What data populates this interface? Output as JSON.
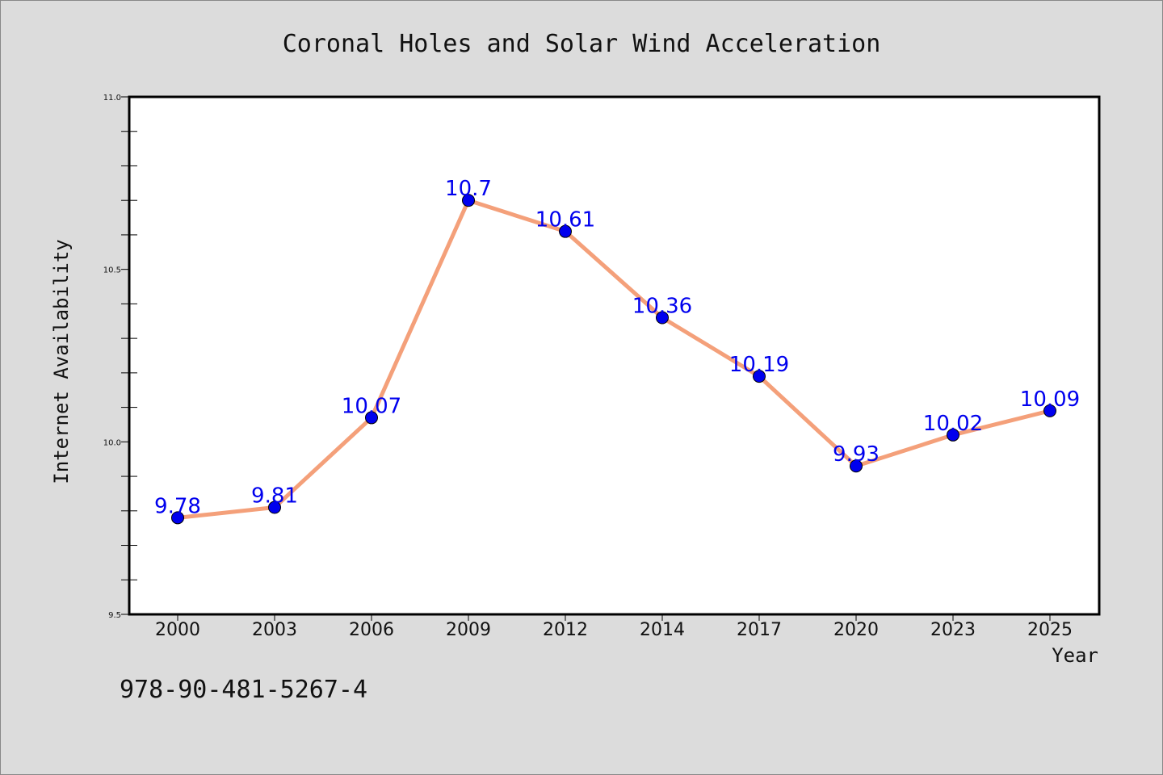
{
  "chart_data": {
    "type": "line",
    "title": "Coronal Holes and Solar Wind Acceleration",
    "xlabel": "Year",
    "ylabel": "Internet Availability",
    "categories": [
      "2000",
      "2003",
      "2006",
      "2009",
      "2012",
      "2014",
      "2017",
      "2020",
      "2023",
      "2025"
    ],
    "values": [
      9.78,
      9.81,
      10.07,
      10.7,
      10.61,
      10.36,
      10.19,
      9.93,
      10.02,
      10.09
    ],
    "data_labels": [
      "9.78",
      "9.81",
      "10.07",
      "10.7",
      "10.61",
      "10.36",
      "10.19",
      "9.93",
      "10.02",
      "10.09"
    ],
    "ylim": [
      9.5,
      11.0
    ],
    "yticks": [
      "9.5",
      "10.0",
      "10.5",
      "11.0"
    ],
    "grid": false,
    "legend": "none",
    "line_color": "#f4a07a",
    "marker_color": "#0000ee",
    "label_color": "#0000ee"
  },
  "footer": {
    "isbn": "978-90-481-5267-4"
  }
}
